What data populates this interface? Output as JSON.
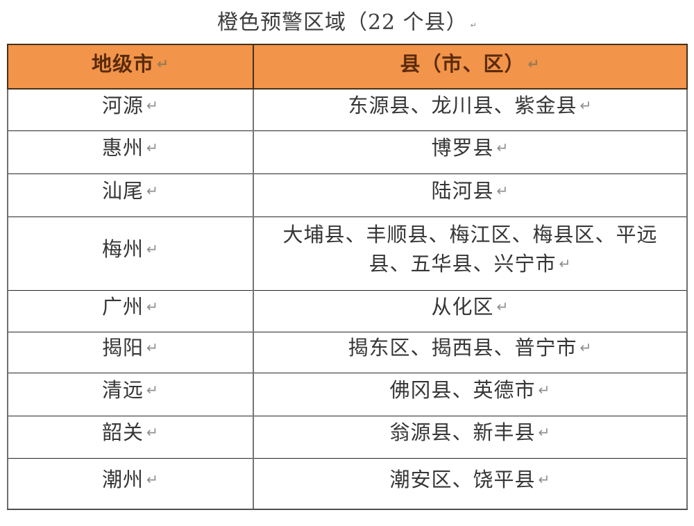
{
  "page": {
    "title": "橙色预警区域（22 个县）",
    "return_mark": "↵"
  },
  "table": {
    "headers": {
      "city": "地级市",
      "counties": "县（市、区）"
    },
    "rows": [
      {
        "city": "河源",
        "counties": "东源县、龙川县、紫金县"
      },
      {
        "city": "惠州",
        "counties": "博罗县"
      },
      {
        "city": "汕尾",
        "counties": "陆河县"
      },
      {
        "city": "梅州",
        "counties": "大埔县、丰顺县、梅江区、梅县区、平远县、五华县、兴宁市"
      },
      {
        "city": "广州",
        "counties": "从化区"
      },
      {
        "city": "揭阳",
        "counties": "揭东区、揭西县、普宁市"
      },
      {
        "city": "清远",
        "counties": "佛冈县、英德市"
      },
      {
        "city": "韶关",
        "counties": "翁源县、新丰县"
      },
      {
        "city": "潮州",
        "counties": "潮安区、饶平县"
      }
    ],
    "colors": {
      "header_bg": "#F2944A",
      "header_text": "#5A2B0B",
      "body_text": "#363636",
      "return_mark": "#8F8F8F",
      "row_border": "#262626",
      "column_border": "#757575"
    }
  }
}
